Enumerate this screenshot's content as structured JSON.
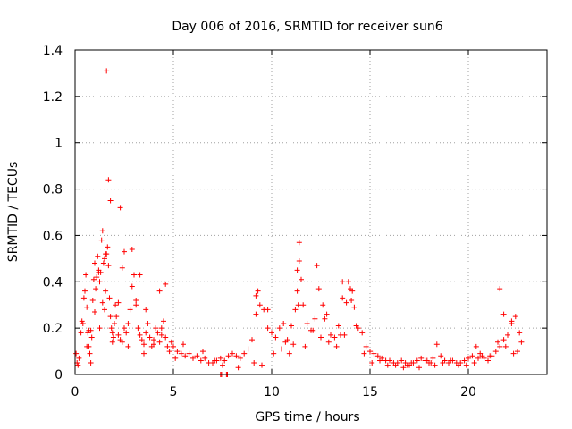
{
  "chart_data": {
    "type": "scatter",
    "title": "Day 006 of 2016, SRMTID for receiver sun6",
    "xlabel": "GPS time / hours",
    "ylabel": "SRMTID / TECUs",
    "xlim": [
      0,
      24
    ],
    "ylim": [
      0,
      1.4
    ],
    "xticks": [
      0,
      5,
      10,
      15,
      20
    ],
    "xtick_labels": [
      "0",
      "5",
      "10",
      "15",
      "20"
    ],
    "yticks": [
      0,
      0.2,
      0.4,
      0.6,
      0.8,
      1.0,
      1.2,
      1.4
    ],
    "ytick_labels": [
      "0",
      "0.2",
      "0.4",
      "0.6",
      "0.8",
      "1",
      "1.2",
      "1.4"
    ],
    "grid": true,
    "marker": "+",
    "marker_color": "#ff0000",
    "series": [
      {
        "name": "SRMTID",
        "x": [
          0.05,
          0.1,
          0.15,
          0.2,
          0.3,
          0.35,
          0.4,
          0.45,
          0.5,
          0.55,
          0.6,
          0.65,
          0.7,
          0.75,
          0.8,
          0.85,
          0.9,
          0.95,
          1.0,
          1.05,
          1.1,
          1.15,
          1.2,
          1.25,
          1.3,
          1.35,
          1.4,
          1.45,
          1.5,
          1.55,
          1.6,
          1.65,
          1.7,
          1.75,
          1.8,
          1.85,
          1.9,
          1.95,
          2.0,
          2.05,
          2.1,
          2.2,
          2.3,
          2.4,
          2.5,
          2.6,
          2.7,
          2.8,
          2.9,
          3.0,
          3.1,
          3.2,
          3.3,
          3.4,
          3.5,
          3.6,
          3.7,
          3.8,
          3.9,
          4.0,
          4.1,
          4.2,
          4.3,
          4.4,
          4.5,
          4.6,
          4.7,
          4.8,
          4.9,
          5.0,
          5.2,
          5.4,
          5.6,
          5.8,
          6.0,
          6.2,
          6.4,
          6.6,
          6.8,
          7.0,
          7.2,
          7.4,
          7.6,
          7.8,
          8.0,
          8.2,
          8.4,
          8.6,
          8.8,
          9.0,
          9.2,
          9.3,
          9.4,
          9.6,
          9.8,
          10.0,
          10.2,
          10.4,
          10.6,
          10.8,
          11.0,
          11.2,
          11.3,
          11.4,
          11.5,
          11.6,
          11.8,
          12.0,
          12.2,
          12.4,
          12.6,
          12.8,
          13.0,
          13.2,
          13.4,
          13.6,
          13.8,
          14.0,
          14.2,
          14.4,
          14.6,
          14.8,
          15.0,
          15.2,
          15.4,
          15.6,
          15.8,
          16.0,
          16.2,
          16.4,
          16.6,
          16.8,
          17.0,
          17.2,
          17.4,
          17.6,
          17.8,
          18.0,
          18.2,
          18.4,
          18.6,
          18.8,
          19.0,
          19.2,
          19.4,
          19.6,
          19.8,
          20.0,
          20.2,
          20.4,
          20.6,
          20.8,
          21.0,
          21.2,
          21.4,
          21.6,
          21.8,
          22.0,
          22.2,
          22.4,
          22.6,
          22.7,
          0.6,
          0.8,
          1.0,
          1.2,
          1.4,
          1.5,
          1.55,
          1.6,
          1.7,
          1.8,
          2.3,
          2.4,
          2.5,
          2.9,
          3.1,
          3.3,
          4.3,
          4.6,
          9.2,
          9.8,
          11.3,
          11.35,
          11.4,
          12.3,
          13.6,
          13.9,
          14.1,
          21.6,
          21.8,
          22.2,
          0.7,
          1.25,
          1.9,
          2.7,
          3.5,
          4.0,
          4.4,
          5.1,
          5.5,
          6.5,
          7.1,
          7.5,
          8.3,
          9.1,
          9.5,
          10.1,
          10.5,
          10.9,
          11.1,
          11.7,
          12.1,
          12.5,
          12.9,
          13.3,
          13.7,
          14.3,
          14.7,
          15.1,
          15.5,
          15.9,
          16.3,
          16.7,
          17.1,
          17.5,
          17.9,
          18.3,
          18.7,
          19.1,
          19.5,
          19.9,
          20.3,
          20.7,
          21.1,
          21.5,
          21.9,
          22.3,
          22.5,
          7.4,
          7.45,
          7.7,
          7.75,
          2.2,
          3.6,
          10.7,
          12.7,
          13.5,
          14.05,
          16.9,
          18.1,
          20.5
        ],
        "y": [
          0.09,
          0.05,
          0.04,
          0.07,
          0.18,
          0.23,
          0.22,
          0.33,
          0.36,
          0.43,
          0.29,
          0.18,
          0.12,
          0.09,
          0.05,
          0.16,
          0.32,
          0.41,
          0.48,
          0.37,
          0.42,
          0.51,
          0.45,
          0.4,
          0.44,
          0.58,
          0.62,
          0.48,
          0.28,
          0.36,
          0.52,
          0.55,
          0.47,
          0.33,
          0.25,
          0.2,
          0.18,
          0.16,
          0.22,
          0.3,
          0.25,
          0.17,
          0.15,
          0.14,
          0.2,
          0.18,
          0.22,
          0.28,
          0.38,
          0.43,
          0.32,
          0.2,
          0.17,
          0.15,
          0.13,
          0.18,
          0.22,
          0.16,
          0.12,
          0.15,
          0.2,
          0.18,
          0.14,
          0.17,
          0.23,
          0.16,
          0.12,
          0.1,
          0.14,
          0.12,
          0.1,
          0.09,
          0.08,
          0.09,
          0.07,
          0.08,
          0.06,
          0.07,
          0.05,
          0.05,
          0.06,
          0.07,
          0.06,
          0.08,
          0.09,
          0.08,
          0.07,
          0.09,
          0.11,
          0.15,
          0.34,
          0.36,
          0.3,
          0.28,
          0.2,
          0.18,
          0.16,
          0.2,
          0.22,
          0.15,
          0.21,
          0.28,
          0.45,
          0.49,
          0.41,
          0.3,
          0.22,
          0.19,
          0.24,
          0.37,
          0.3,
          0.26,
          0.17,
          0.16,
          0.21,
          0.33,
          0.31,
          0.37,
          0.29,
          0.2,
          0.18,
          0.12,
          0.1,
          0.09,
          0.08,
          0.07,
          0.06,
          0.06,
          0.05,
          0.05,
          0.06,
          0.05,
          0.04,
          0.05,
          0.06,
          0.07,
          0.06,
          0.05,
          0.07,
          0.13,
          0.08,
          0.06,
          0.05,
          0.06,
          0.05,
          0.05,
          0.06,
          0.07,
          0.08,
          0.12,
          0.09,
          0.07,
          0.06,
          0.08,
          0.1,
          0.12,
          0.15,
          0.17,
          0.22,
          0.25,
          0.18,
          0.14,
          0.12,
          0.19,
          0.27,
          0.44,
          0.31,
          0.5,
          0.52,
          1.31,
          0.84,
          0.75,
          0.72,
          0.46,
          0.53,
          0.54,
          0.3,
          0.43,
          0.36,
          0.39,
          0.26,
          0.28,
          0.36,
          0.3,
          0.57,
          0.47,
          0.4,
          0.4,
          0.36,
          0.37,
          0.26,
          0.23,
          0.19,
          0.2,
          0.14,
          0.12,
          0.09,
          0.13,
          0.2,
          0.07,
          0.13,
          0.1,
          0.06,
          0.04,
          0.03,
          0.05,
          0.04,
          0.09,
          0.11,
          0.09,
          0.13,
          0.12,
          0.19,
          0.16,
          0.14,
          0.12,
          0.17,
          0.21,
          0.09,
          0.05,
          0.06,
          0.04,
          0.04,
          0.03,
          0.05,
          0.03,
          0.06,
          0.04,
          0.05,
          0.06,
          0.04,
          0.04,
          0.05,
          0.08,
          0.08,
          0.14,
          0.12,
          0.09,
          0.1,
          0.0,
          0.0,
          0.0,
          0.0,
          0.31,
          0.28,
          0.14,
          0.24,
          0.17,
          0.32,
          0.04,
          0.05,
          0.07
        ]
      }
    ]
  }
}
